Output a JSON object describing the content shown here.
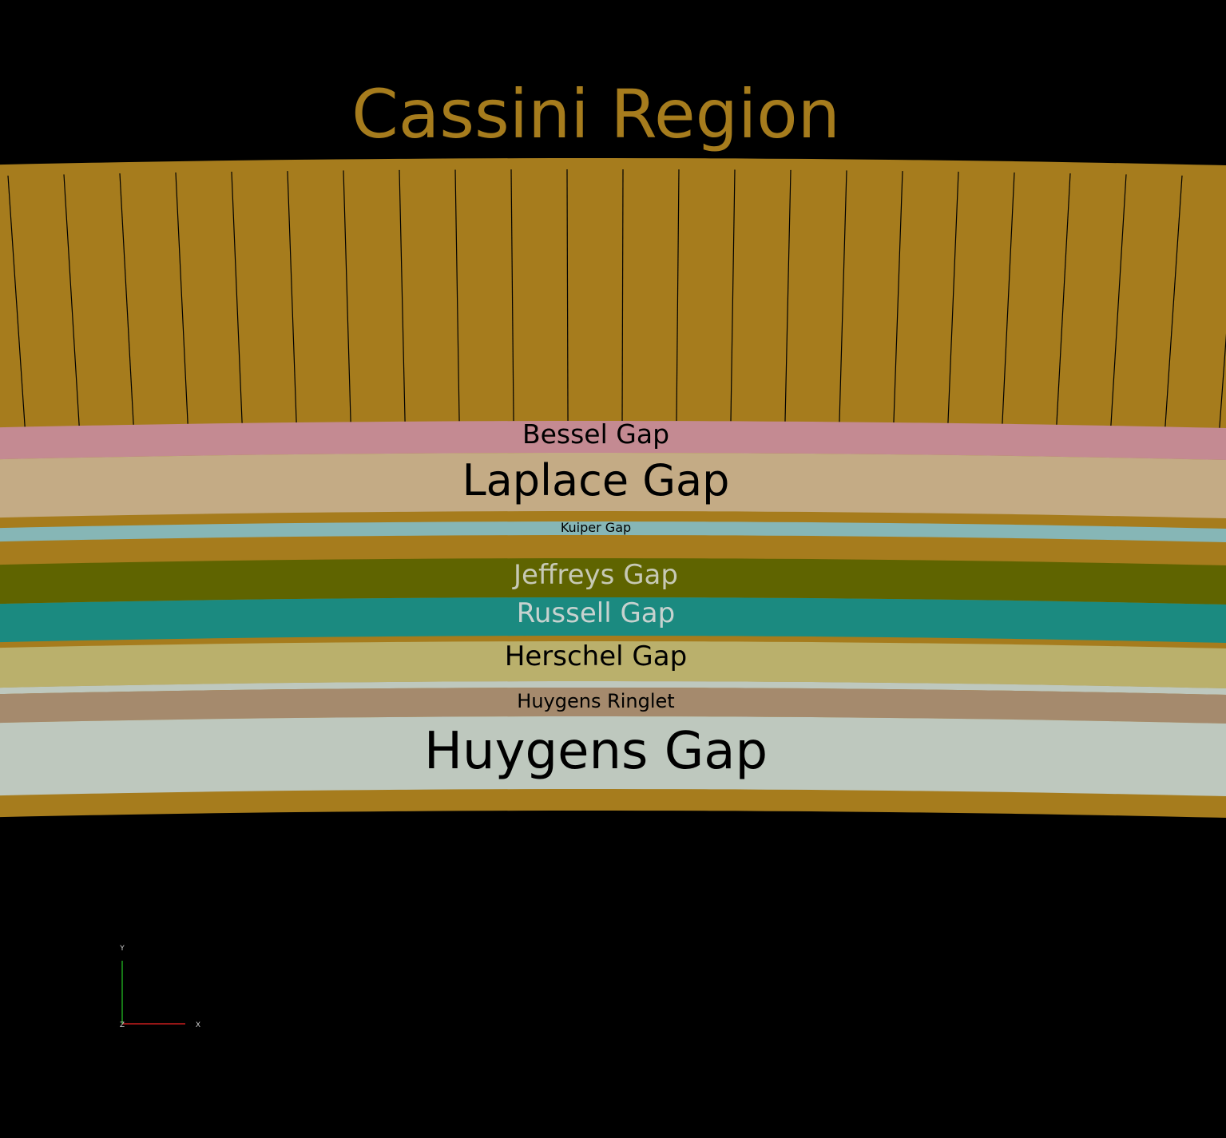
{
  "title": {
    "text": "Cassini Region",
    "color": "#a67c1d"
  },
  "ring_base_color": "#a67c1d",
  "spoke_color": "#000000",
  "spoke_count": 23,
  "bands": [
    {
      "name": "Bessel Gap",
      "color": "#c48a92",
      "label_color": "#000000"
    },
    {
      "name": "Laplace Gap",
      "color": "#c4ab85",
      "label_color": "#000000"
    },
    {
      "name": "Kuiper Gap",
      "color": "#86b6b6",
      "label_color": "#000000"
    },
    {
      "name": "Jeffreys Gap",
      "color": "#5f6400",
      "label_color": "#c7c9b5"
    },
    {
      "name": "Russell Gap",
      "color": "#1b8a80",
      "label_color": "#c7d2cf"
    },
    {
      "name": "Herschel Gap",
      "color": "#bab06c",
      "label_color": "#000000"
    },
    {
      "name": "Huygens Ringlet",
      "color": "#a58a6d",
      "label_color": "#000000"
    },
    {
      "name": "Huygens Gap",
      "color": "#bec8be",
      "label_color": "#000000"
    }
  ],
  "axes": {
    "x_label": "X",
    "y_label": "Y",
    "z_label": "Z",
    "x_color": "#c81e1e",
    "y_color": "#1ea01e"
  }
}
